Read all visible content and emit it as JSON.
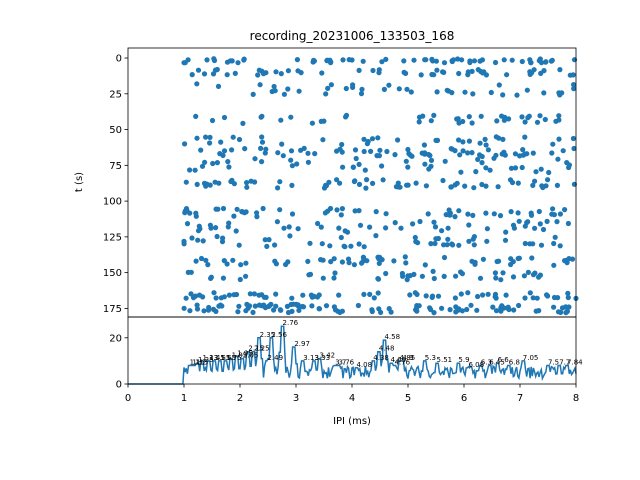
{
  "chart_data": [
    {
      "type": "scatter",
      "title": "recording_20231006_133503_168",
      "ylabel": "t (s)",
      "xlim": [
        0,
        8
      ],
      "ylim": [
        181,
        -7
      ],
      "y_inverted": true,
      "yticks": [
        "0",
        "25",
        "50",
        "75",
        "100",
        "125",
        "150",
        "175"
      ],
      "color": "#1f77b4",
      "bands": [
        {
          "t": 2,
          "spread": 1.5,
          "count": 60,
          "x_from": 1.0,
          "x_to": 8.0
        },
        {
          "t": 10,
          "spread": 2,
          "count": 50,
          "x_from": 1.0,
          "x_to": 8.0
        },
        {
          "t": 22,
          "spread": 4,
          "count": 40,
          "x_from": 1.2,
          "x_to": 8.0
        },
        {
          "t": 43,
          "spread": 3,
          "count": 40,
          "x_from": 1.2,
          "x_to": 8.0
        },
        {
          "t": 58,
          "spread": 3,
          "count": 35,
          "x_from": 1.0,
          "x_to": 8.0
        },
        {
          "t": 66,
          "spread": 3,
          "count": 60,
          "x_from": 1.0,
          "x_to": 8.0
        },
        {
          "t": 75,
          "spread": 5,
          "count": 45,
          "x_from": 1.0,
          "x_to": 8.0
        },
        {
          "t": 88,
          "spread": 3,
          "count": 60,
          "x_from": 1.0,
          "x_to": 8.0
        },
        {
          "t": 108,
          "spread": 3,
          "count": 55,
          "x_from": 1.0,
          "x_to": 8.0
        },
        {
          "t": 118,
          "spread": 4,
          "count": 45,
          "x_from": 1.0,
          "x_to": 8.0
        },
        {
          "t": 128,
          "spread": 4,
          "count": 50,
          "x_from": 1.0,
          "x_to": 8.0
        },
        {
          "t": 142,
          "spread": 3,
          "count": 55,
          "x_from": 1.0,
          "x_to": 8.0
        },
        {
          "t": 152,
          "spread": 3,
          "count": 40,
          "x_from": 1.0,
          "x_to": 8.0
        },
        {
          "t": 166,
          "spread": 2,
          "count": 60,
          "x_from": 1.0,
          "x_to": 8.0
        },
        {
          "t": 175,
          "spread": 3,
          "count": 100,
          "x_from": 1.0,
          "x_to": 8.0
        }
      ]
    },
    {
      "type": "line",
      "xlabel": "IPI (ms)",
      "xlim": [
        0,
        8
      ],
      "ylim": [
        0,
        29
      ],
      "xticks": [
        0,
        1,
        2,
        3,
        4,
        5,
        6,
        7,
        8
      ],
      "yticks": [
        "0",
        "20"
      ],
      "color": "#1f77b4",
      "baseline_until": 1.0,
      "noise_mean": 6,
      "peaks": [
        {
          "x": 1.1,
          "y": 8,
          "label": "1.1"
        },
        {
          "x": 1.15,
          "y": 8,
          "label": "1.15"
        },
        {
          "x": 1.2,
          "y": 8,
          "label": "1.2"
        },
        {
          "x": 1.25,
          "y": 9,
          "label": "1.25"
        },
        {
          "x": 1.33,
          "y": 10,
          "label": "1.33"
        },
        {
          "x": 1.45,
          "y": 10,
          "label": "1.45"
        },
        {
          "x": 1.55,
          "y": 10,
          "label": "1.55"
        },
        {
          "x": 1.65,
          "y": 10,
          "label": "1.65"
        },
        {
          "x": 1.75,
          "y": 10,
          "label": "1.75"
        },
        {
          "x": 1.85,
          "y": 11,
          "label": "1.85"
        },
        {
          "x": 1.95,
          "y": 12,
          "label": "1.95"
        },
        {
          "x": 2.05,
          "y": 11,
          "label": "2.05"
        },
        {
          "x": 2.15,
          "y": 14,
          "label": "2.15"
        },
        {
          "x": 2.25,
          "y": 14,
          "label": "2.25"
        },
        {
          "x": 2.35,
          "y": 20,
          "label": "2.35"
        },
        {
          "x": 2.49,
          "y": 10,
          "label": "2.49"
        },
        {
          "x": 2.56,
          "y": 20,
          "label": "2.56"
        },
        {
          "x": 2.76,
          "y": 25,
          "label": "2.76"
        },
        {
          "x": 2.97,
          "y": 16,
          "label": "2.97"
        },
        {
          "x": 3.13,
          "y": 10,
          "label": "3.13"
        },
        {
          "x": 3.33,
          "y": 10,
          "label": "3.33"
        },
        {
          "x": 3.42,
          "y": 11,
          "label": "3.42"
        },
        {
          "x": 3.7,
          "y": 8,
          "label": "3.7"
        },
        {
          "x": 3.76,
          "y": 8,
          "label": "3.76"
        },
        {
          "x": 4.08,
          "y": 7,
          "label": "4.08"
        },
        {
          "x": 4.38,
          "y": 10,
          "label": "4.38"
        },
        {
          "x": 4.48,
          "y": 14,
          "label": "4.48"
        },
        {
          "x": 4.58,
          "y": 19,
          "label": "4.58"
        },
        {
          "x": 4.69,
          "y": 9,
          "label": "4.69"
        },
        {
          "x": 4.76,
          "y": 8,
          "label": "4.76"
        },
        {
          "x": 4.85,
          "y": 10,
          "label": "4.85"
        },
        {
          "x": 4.9,
          "y": 10,
          "label": "4.9"
        },
        {
          "x": 5.3,
          "y": 10,
          "label": "5.3"
        },
        {
          "x": 5.51,
          "y": 9,
          "label": "5.51"
        },
        {
          "x": 5.9,
          "y": 9,
          "label": "5.9"
        },
        {
          "x": 6.08,
          "y": 7,
          "label": "6.08"
        },
        {
          "x": 6.3,
          "y": 8,
          "label": "6.3"
        },
        {
          "x": 6.45,
          "y": 8,
          "label": "6.45"
        },
        {
          "x": 6.6,
          "y": 9,
          "label": "6.6"
        },
        {
          "x": 6.8,
          "y": 8,
          "label": "6.8"
        },
        {
          "x": 7.05,
          "y": 10,
          "label": "7.05"
        },
        {
          "x": 7.5,
          "y": 8,
          "label": "7.5"
        },
        {
          "x": 7.7,
          "y": 8,
          "label": "7.7"
        },
        {
          "x": 7.84,
          "y": 8,
          "label": "7.84"
        }
      ]
    }
  ]
}
